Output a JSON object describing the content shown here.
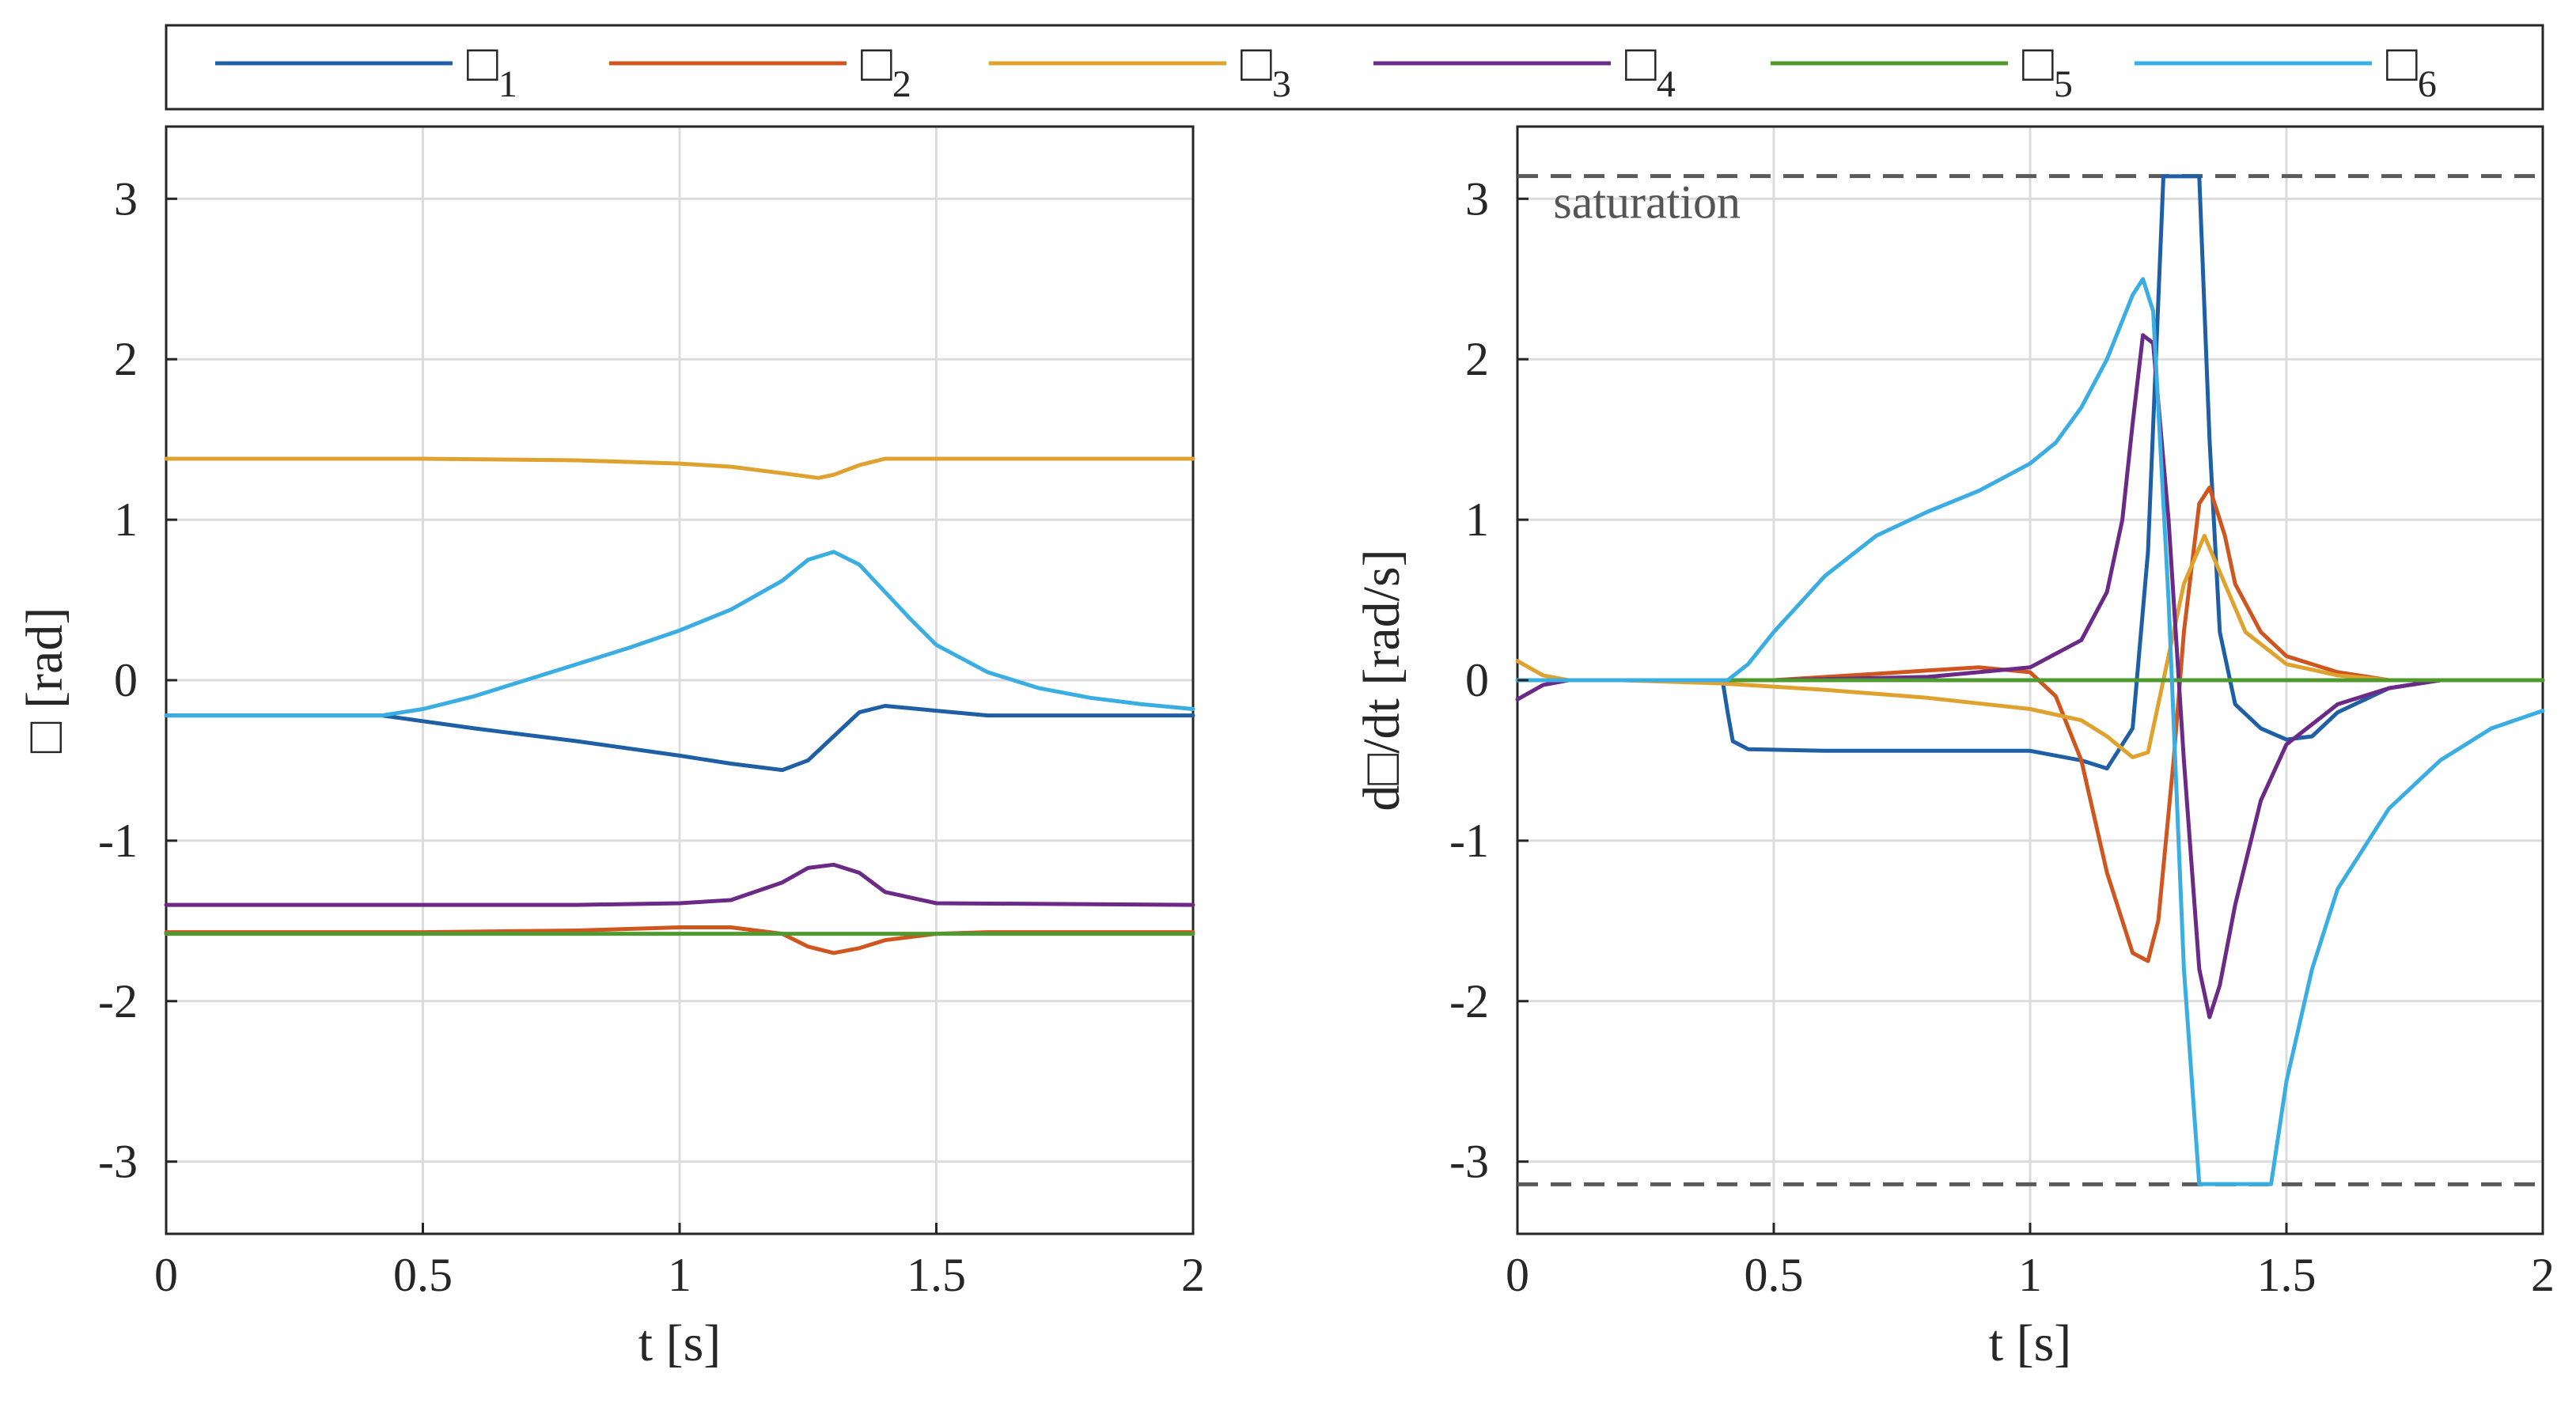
{
  "legend": {
    "glyph": "□",
    "entries": [
      {
        "sub": "1",
        "color": "#1f5fa6"
      },
      {
        "sub": "2",
        "color": "#d0561f"
      },
      {
        "sub": "3",
        "color": "#e0a22e"
      },
      {
        "sub": "4",
        "color": "#6b2a85"
      },
      {
        "sub": "5",
        "color": "#4e9a2e"
      },
      {
        "sub": "6",
        "color": "#3aaee2"
      }
    ]
  },
  "chart_data": [
    {
      "type": "line",
      "xlabel": "t [s]",
      "ylabel": "□ [rad]",
      "xlim": [
        0,
        2
      ],
      "ylim": [
        -3.45,
        3.45
      ],
      "xticks": [
        0,
        0.5,
        1,
        1.5,
        2
      ],
      "xtick_labels": [
        "0",
        "0.5",
        "1",
        "1.5",
        "2"
      ],
      "yticks": [
        3,
        2,
        1,
        0,
        -1,
        -2,
        -3
      ],
      "ytick_labels": [
        "3",
        "2",
        "1",
        "0",
        "-1",
        "-2",
        "-3"
      ],
      "grid": true,
      "series": [
        {
          "name": "1",
          "x": [
            0,
            0.42,
            0.6,
            0.8,
            1.0,
            1.1,
            1.2,
            1.25,
            1.3,
            1.35,
            1.4,
            1.5,
            1.6,
            1.8,
            2.0
          ],
          "values": [
            -0.22,
            -0.22,
            -0.3,
            -0.38,
            -0.47,
            -0.52,
            -0.56,
            -0.5,
            -0.35,
            -0.2,
            -0.16,
            -0.19,
            -0.22,
            -0.22,
            -0.22
          ]
        },
        {
          "name": "2",
          "x": [
            0,
            0.5,
            0.8,
            1.0,
            1.1,
            1.2,
            1.25,
            1.3,
            1.35,
            1.4,
            1.5,
            1.6,
            2.0
          ],
          "values": [
            -1.57,
            -1.57,
            -1.56,
            -1.54,
            -1.54,
            -1.58,
            -1.66,
            -1.7,
            -1.67,
            -1.62,
            -1.58,
            -1.57,
            -1.57
          ]
        },
        {
          "name": "3",
          "x": [
            0,
            0.5,
            0.8,
            1.0,
            1.1,
            1.2,
            1.27,
            1.3,
            1.35,
            1.4,
            1.5,
            1.6,
            2.0
          ],
          "values": [
            1.38,
            1.38,
            1.37,
            1.35,
            1.33,
            1.29,
            1.26,
            1.28,
            1.34,
            1.38,
            1.38,
            1.38,
            1.38
          ]
        },
        {
          "name": "4",
          "x": [
            0,
            0.5,
            0.8,
            1.0,
            1.1,
            1.2,
            1.25,
            1.3,
            1.35,
            1.4,
            1.5,
            2.0
          ],
          "values": [
            -1.4,
            -1.4,
            -1.4,
            -1.39,
            -1.37,
            -1.26,
            -1.17,
            -1.15,
            -1.2,
            -1.32,
            -1.39,
            -1.4
          ]
        },
        {
          "name": "5",
          "x": [
            0,
            2.0
          ],
          "values": [
            -1.58,
            -1.58
          ]
        },
        {
          "name": "6",
          "x": [
            0,
            0.42,
            0.5,
            0.6,
            0.7,
            0.8,
            0.9,
            1.0,
            1.1,
            1.2,
            1.25,
            1.3,
            1.35,
            1.4,
            1.45,
            1.5,
            1.6,
            1.7,
            1.8,
            1.9,
            2.0
          ],
          "values": [
            -0.22,
            -0.22,
            -0.18,
            -0.1,
            0.0,
            0.1,
            0.2,
            0.31,
            0.44,
            0.62,
            0.75,
            0.8,
            0.72,
            0.55,
            0.38,
            0.22,
            0.05,
            -0.05,
            -0.11,
            -0.15,
            -0.18
          ]
        }
      ]
    },
    {
      "type": "line",
      "xlabel": "t [s]",
      "ylabel": "d□/dt [rad/s]",
      "xlim": [
        0,
        2
      ],
      "ylim": [
        -3.45,
        3.45
      ],
      "xticks": [
        0,
        0.5,
        1,
        1.5,
        2
      ],
      "xtick_labels": [
        "0",
        "0.5",
        "1",
        "1.5",
        "2"
      ],
      "yticks": [
        3,
        2,
        1,
        0,
        -1,
        -2,
        -3
      ],
      "ytick_labels": [
        "3",
        "2",
        "1",
        "0",
        "-1",
        "-2",
        "-3"
      ],
      "grid": true,
      "annotations": [
        {
          "text": "saturation",
          "x": 0.07,
          "y": 2.88
        }
      ],
      "saturation_limits": [
        3.1416,
        -3.1416
      ],
      "series": [
        {
          "name": "1",
          "x": [
            0,
            0.4,
            0.41,
            0.42,
            0.45,
            0.6,
            0.8,
            1.0,
            1.1,
            1.15,
            1.2,
            1.23,
            1.26,
            1.33,
            1.35,
            1.37,
            1.4,
            1.45,
            1.5,
            1.55,
            1.6,
            1.7,
            1.8,
            2.0
          ],
          "values": [
            0,
            0,
            -0.2,
            -0.38,
            -0.43,
            -0.44,
            -0.44,
            -0.44,
            -0.5,
            -0.55,
            -0.3,
            0.8,
            3.14,
            3.14,
            1.5,
            0.3,
            -0.15,
            -0.3,
            -0.37,
            -0.35,
            -0.2,
            -0.05,
            0,
            0
          ]
        },
        {
          "name": "2",
          "x": [
            0,
            0.5,
            0.8,
            0.9,
            1.0,
            1.05,
            1.1,
            1.15,
            1.2,
            1.23,
            1.25,
            1.28,
            1.3,
            1.33,
            1.35,
            1.38,
            1.4,
            1.45,
            1.5,
            1.6,
            1.7,
            2.0
          ],
          "values": [
            0,
            0,
            0.06,
            0.08,
            0.05,
            -0.1,
            -0.5,
            -1.2,
            -1.7,
            -1.75,
            -1.5,
            -0.5,
            0.3,
            1.1,
            1.2,
            0.9,
            0.6,
            0.3,
            0.15,
            0.05,
            0,
            0
          ]
        },
        {
          "name": "3",
          "x": [
            0,
            0.05,
            0.1,
            0.2,
            0.4,
            0.6,
            0.8,
            1.0,
            1.1,
            1.15,
            1.2,
            1.23,
            1.26,
            1.3,
            1.34,
            1.38,
            1.42,
            1.5,
            1.6,
            1.7,
            2.0
          ],
          "values": [
            0.12,
            0.03,
            0,
            0,
            -0.02,
            -0.06,
            -0.11,
            -0.18,
            -0.25,
            -0.35,
            -0.48,
            -0.45,
            0.0,
            0.6,
            0.9,
            0.6,
            0.3,
            0.1,
            0.03,
            0,
            0
          ]
        },
        {
          "name": "4",
          "x": [
            0,
            0.05,
            0.1,
            0.2,
            0.5,
            0.8,
            1.0,
            1.1,
            1.15,
            1.18,
            1.2,
            1.22,
            1.24,
            1.27,
            1.3,
            1.33,
            1.35,
            1.37,
            1.4,
            1.45,
            1.5,
            1.6,
            1.7,
            1.8,
            2.0
          ],
          "values": [
            -0.12,
            -0.03,
            0,
            0,
            0,
            0.02,
            0.08,
            0.25,
            0.55,
            1.0,
            1.6,
            2.15,
            2.1,
            1.0,
            -0.5,
            -1.8,
            -2.1,
            -1.9,
            -1.4,
            -0.75,
            -0.4,
            -0.15,
            -0.05,
            0,
            0
          ]
        },
        {
          "name": "5",
          "x": [
            0,
            2.0
          ],
          "values": [
            0,
            0
          ]
        },
        {
          "name": "6",
          "x": [
            0,
            0.41,
            0.45,
            0.5,
            0.6,
            0.7,
            0.8,
            0.9,
            1.0,
            1.05,
            1.1,
            1.15,
            1.2,
            1.22,
            1.24,
            1.27,
            1.3,
            1.33,
            1.38,
            1.44,
            1.47,
            1.5,
            1.55,
            1.6,
            1.7,
            1.8,
            1.9,
            2.0
          ],
          "values": [
            0,
            0,
            0.1,
            0.3,
            0.65,
            0.9,
            1.05,
            1.18,
            1.35,
            1.48,
            1.7,
            2.0,
            2.4,
            2.5,
            2.3,
            0.5,
            -1.8,
            -3.14,
            -3.14,
            -3.14,
            -3.14,
            -2.5,
            -1.8,
            -1.3,
            -0.8,
            -0.5,
            -0.3,
            -0.19
          ]
        }
      ]
    }
  ]
}
